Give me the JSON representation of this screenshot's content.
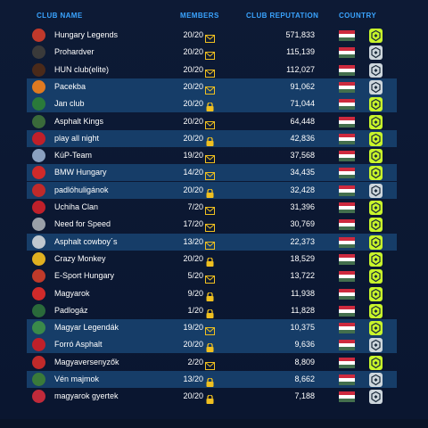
{
  "header": {
    "club_name": "CLUB NAME",
    "members": "MEMBERS",
    "club_reputation": "CLUB REPUTATION",
    "country": "COUNTRY"
  },
  "colors": {
    "accent": "#3aa4ff",
    "row_highlight": "#163d68",
    "status_yellow": "#f0c020",
    "badge_on": "#c8f52a",
    "badge_off": "#cdd6dc"
  },
  "clubs": [
    {
      "name": "Hungary Legends",
      "members": "20/20",
      "status": "mail",
      "reputation": "571,833",
      "badge": "on",
      "emblem": "#c0392b",
      "hl": false
    },
    {
      "name": "Prohardver",
      "members": "20/20",
      "status": "mail",
      "reputation": "115,139",
      "badge": "off",
      "emblem": "#3a3a3a",
      "hl": false
    },
    {
      "name": "HUN club(elite)",
      "members": "20/20",
      "status": "mail",
      "reputation": "112,027",
      "badge": "off",
      "emblem": "#4a2a1a",
      "hl": false
    },
    {
      "name": "Pacekba",
      "members": "20/20",
      "status": "mail",
      "reputation": "91,062",
      "badge": "off",
      "emblem": "#e07a20",
      "hl": true
    },
    {
      "name": "Jan club",
      "members": "20/20",
      "status": "lock",
      "reputation": "71,044",
      "badge": "on",
      "emblem": "#2a7a3a",
      "hl": true
    },
    {
      "name": "Asphalt Kings",
      "members": "20/20",
      "status": "mail",
      "reputation": "64,448",
      "badge": "on",
      "emblem": "#3a6a3a",
      "hl": false
    },
    {
      "name": "play all  night",
      "members": "20/20",
      "status": "lock",
      "reputation": "42,836",
      "badge": "on",
      "emblem": "#c0202a",
      "hl": true
    },
    {
      "name": "KúP-Team",
      "members": "19/20",
      "status": "mail",
      "reputation": "37,568",
      "badge": "on",
      "emblem": "#8aa0c0",
      "hl": false
    },
    {
      "name": "BMW Hungary",
      "members": "14/20",
      "status": "mail",
      "reputation": "34,435",
      "badge": "on",
      "emblem": "#d02a2a",
      "hl": true
    },
    {
      "name": "padlóhuligánok",
      "members": "20/20",
      "status": "lock",
      "reputation": "32,428",
      "badge": "off",
      "emblem": "#c02a2a",
      "hl": true
    },
    {
      "name": "Uchiha Clan",
      "members": "7/20",
      "status": "mail",
      "reputation": "31,396",
      "badge": "on",
      "emblem": "#c0202a",
      "hl": false
    },
    {
      "name": "Need for Speed",
      "members": "17/20",
      "status": "mail",
      "reputation": "30,769",
      "badge": "on",
      "emblem": "#9aa0a8",
      "hl": false
    },
    {
      "name": "Asphalt cowboy´s",
      "members": "13/20",
      "status": "mail",
      "reputation": "22,373",
      "badge": "on",
      "emblem": "#c0c8d0",
      "hl": true
    },
    {
      "name": "Crazy Monkey",
      "members": "20/20",
      "status": "lock",
      "reputation": "18,529",
      "badge": "on",
      "emblem": "#e0b020",
      "hl": false
    },
    {
      "name": "E-Sport Hungary",
      "members": "5/20",
      "status": "mail",
      "reputation": "13,722",
      "badge": "on",
      "emblem": "#c03a2a",
      "hl": false
    },
    {
      "name": "Magyarok",
      "members": "9/20",
      "status": "lock",
      "reputation": "11,938",
      "badge": "on",
      "emblem": "#d02a2a",
      "hl": false
    },
    {
      "name": "Padlogáz",
      "members": "1/20",
      "status": "lock",
      "reputation": "11,828",
      "badge": "on",
      "emblem": "#2a6a3a",
      "hl": false
    },
    {
      "name": "Magyar Legendák",
      "members": "19/20",
      "status": "mail",
      "reputation": "10,375",
      "badge": "on",
      "emblem": "#3a8a4a",
      "hl": true
    },
    {
      "name": "Forró Asphalt",
      "members": "20/20",
      "status": "lock",
      "reputation": "9,636",
      "badge": "off",
      "emblem": "#c0202a",
      "hl": true
    },
    {
      "name": "Magyaversenyzők",
      "members": "2/20",
      "status": "mail",
      "reputation": "8,809",
      "badge": "on",
      "emblem": "#c02a2a",
      "hl": false
    },
    {
      "name": "Vén majmok",
      "members": "13/20",
      "status": "lock",
      "reputation": "8,662",
      "badge": "off",
      "emblem": "#3a7a3a",
      "hl": true
    },
    {
      "name": "magyarok gyertek",
      "members": "20/20",
      "status": "lock",
      "reputation": "7,188",
      "badge": "off",
      "emblem": "#c02a3a",
      "hl": false
    }
  ]
}
